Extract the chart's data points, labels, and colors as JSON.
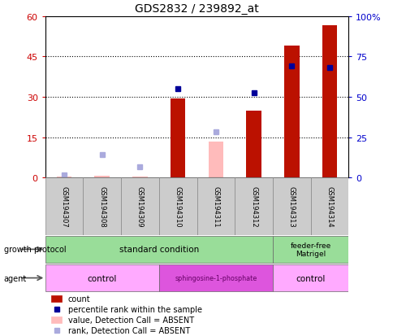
{
  "title": "GDS2832 / 239892_at",
  "samples": [
    "GSM194307",
    "GSM194308",
    "GSM194309",
    "GSM194310",
    "GSM194311",
    "GSM194312",
    "GSM194313",
    "GSM194314"
  ],
  "counts": [
    null,
    null,
    null,
    29.5,
    null,
    25.0,
    49.0,
    56.5
  ],
  "counts_absent": [
    0.5,
    0.8,
    0.5,
    null,
    13.5,
    null,
    null,
    null
  ],
  "percentile_ranks": [
    null,
    null,
    null,
    33.0,
    null,
    31.5,
    41.5,
    41.0
  ],
  "percentile_ranks_absent": [
    1.0,
    8.5,
    4.0,
    null,
    17.0,
    null,
    null,
    null
  ],
  "ylim_left": [
    0,
    60
  ],
  "ylim_right": [
    0,
    100
  ],
  "yticks_left": [
    0,
    15,
    30,
    45,
    60
  ],
  "yticks_right": [
    0,
    25,
    50,
    75,
    100
  ],
  "ytick_labels_left": [
    "0",
    "15",
    "30",
    "45",
    "60"
  ],
  "ytick_labels_right": [
    "0",
    "25",
    "50",
    "75",
    "100%"
  ],
  "bar_color_count": "#bb1100",
  "bar_color_absent": "#ffbbbb",
  "marker_color_rank": "#000099",
  "marker_color_rank_absent": "#aaaadd",
  "legend_items": [
    {
      "label": "count",
      "color": "#bb1100",
      "type": "bar"
    },
    {
      "label": "percentile rank within the sample",
      "color": "#000099",
      "type": "marker"
    },
    {
      "label": "value, Detection Call = ABSENT",
      "color": "#ffbbbb",
      "type": "bar"
    },
    {
      "label": "rank, Detection Call = ABSENT",
      "color": "#aaaadd",
      "type": "marker"
    }
  ],
  "grid_lines": [
    15,
    30,
    45
  ],
  "bar_width": 0.4
}
